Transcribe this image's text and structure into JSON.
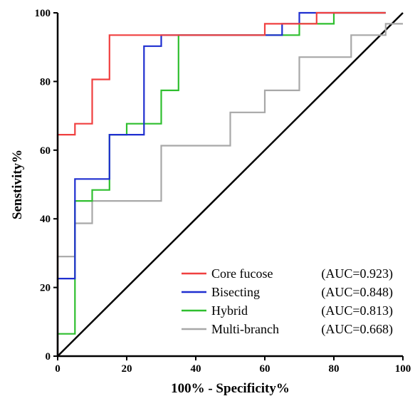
{
  "chart_data": {
    "type": "line",
    "title": "",
    "xlabel": "100% - Specificity%",
    "ylabel": "Senstivity%",
    "xlim": [
      0,
      100
    ],
    "ylim": [
      0,
      100
    ],
    "x_ticks": [
      "0",
      "20",
      "40",
      "60",
      "80",
      "100"
    ],
    "y_ticks": [
      "0",
      "20",
      "40",
      "60",
      "80",
      "100"
    ],
    "grid": false,
    "legend_position": "bottom-right",
    "reference_line": {
      "x": [
        0,
        100
      ],
      "y": [
        0,
        100
      ],
      "color": "#000000"
    },
    "series": [
      {
        "name": "Core fucose",
        "auc_label": "(AUC=0.923)",
        "color": "#f04040",
        "x": [
          0,
          0,
          5,
          5,
          10,
          10,
          15,
          15,
          60,
          60,
          75,
          75,
          95
        ],
        "y": [
          0,
          64.5,
          64.5,
          67.7,
          67.7,
          80.6,
          80.6,
          93.5,
          93.5,
          96.8,
          96.8,
          100,
          100
        ]
      },
      {
        "name": "Bisecting",
        "auc_label": "(AUC=0.848)",
        "color": "#1f2fd0",
        "x": [
          0,
          0,
          5,
          5,
          15,
          15,
          25,
          25,
          30,
          30,
          65,
          65,
          70,
          70,
          95
        ],
        "y": [
          0,
          22.6,
          22.6,
          51.6,
          51.6,
          64.5,
          64.5,
          90.3,
          90.3,
          93.5,
          93.5,
          96.8,
          96.8,
          100,
          100
        ]
      },
      {
        "name": "Hybrid",
        "auc_label": "(AUC=0.813)",
        "color": "#2fbf2f",
        "x": [
          0,
          0,
          5,
          5,
          10,
          10,
          15,
          15,
          20,
          20,
          30,
          30,
          35,
          35,
          60,
          60,
          70,
          70,
          80,
          80,
          95
        ],
        "y": [
          0,
          6.5,
          6.5,
          45.2,
          45.2,
          48.4,
          48.4,
          64.5,
          64.5,
          67.7,
          67.7,
          77.4,
          77.4,
          93.5,
          93.5,
          93.5,
          93.5,
          96.8,
          96.8,
          100,
          100
        ]
      },
      {
        "name": "Multi-branch",
        "auc_label": "(AUC=0.668)",
        "color": "#a8a8a8",
        "x": [
          0,
          0,
          5,
          5,
          10,
          10,
          30,
          30,
          50,
          50,
          60,
          60,
          70,
          70,
          85,
          85,
          95,
          95,
          100
        ],
        "y": [
          0,
          29,
          29,
          38.7,
          38.7,
          45.2,
          45.2,
          61.3,
          61.3,
          71,
          71,
          77.4,
          77.4,
          87.1,
          87.1,
          93.5,
          93.5,
          96.8,
          96.8
        ]
      }
    ]
  }
}
